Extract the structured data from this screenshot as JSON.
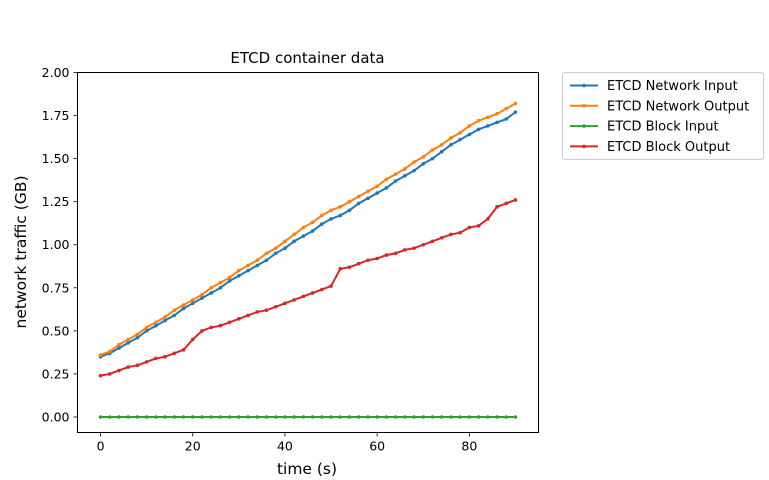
{
  "chart_data": {
    "type": "line",
    "title": "ETCD container data",
    "xlabel": "time (s)",
    "ylabel": "network traffic (GB)",
    "xlim": [
      -5,
      95
    ],
    "ylim": [
      -0.09,
      2.0
    ],
    "xticks": [
      0,
      20,
      40,
      60,
      80
    ],
    "yticks": [
      0.0,
      0.25,
      0.5,
      0.75,
      1.0,
      1.25,
      1.5,
      1.75,
      2.0
    ],
    "xtick_labels": [
      "0",
      "20",
      "40",
      "60",
      "80"
    ],
    "ytick_labels": [
      "0.00",
      "0.25",
      "0.50",
      "0.75",
      "1.00",
      "1.25",
      "1.50",
      "1.75",
      "2.00"
    ],
    "legend_position": "outside upper right",
    "grid": false,
    "x": [
      0,
      2,
      4,
      6,
      8,
      10,
      12,
      14,
      16,
      18,
      20,
      22,
      24,
      26,
      28,
      30,
      32,
      34,
      36,
      38,
      40,
      42,
      44,
      46,
      48,
      50,
      52,
      54,
      56,
      58,
      60,
      62,
      64,
      66,
      68,
      70,
      72,
      74,
      76,
      78,
      80,
      82,
      84,
      86,
      88,
      90
    ],
    "series": [
      {
        "name": "ETCD Network Input",
        "color": "#1f77b4",
        "values": [
          0.35,
          0.37,
          0.4,
          0.43,
          0.46,
          0.5,
          0.53,
          0.56,
          0.59,
          0.63,
          0.66,
          0.69,
          0.72,
          0.75,
          0.79,
          0.82,
          0.85,
          0.88,
          0.91,
          0.95,
          0.98,
          1.02,
          1.05,
          1.08,
          1.12,
          1.15,
          1.17,
          1.2,
          1.24,
          1.27,
          1.3,
          1.33,
          1.37,
          1.4,
          1.43,
          1.47,
          1.5,
          1.54,
          1.58,
          1.61,
          1.64,
          1.67,
          1.69,
          1.71,
          1.73,
          1.77
        ]
      },
      {
        "name": "ETCD Network Output",
        "color": "#ff7f0e",
        "values": [
          0.36,
          0.38,
          0.42,
          0.45,
          0.48,
          0.52,
          0.55,
          0.58,
          0.62,
          0.65,
          0.68,
          0.71,
          0.75,
          0.78,
          0.81,
          0.85,
          0.88,
          0.91,
          0.95,
          0.98,
          1.02,
          1.06,
          1.1,
          1.13,
          1.17,
          1.2,
          1.22,
          1.25,
          1.28,
          1.31,
          1.34,
          1.38,
          1.41,
          1.44,
          1.48,
          1.51,
          1.55,
          1.58,
          1.62,
          1.65,
          1.69,
          1.72,
          1.74,
          1.76,
          1.79,
          1.82
        ]
      },
      {
        "name": "ETCD Block Input",
        "color": "#2ca02c",
        "values": [
          0.0,
          0.0,
          0.0,
          0.0,
          0.0,
          0.0,
          0.0,
          0.0,
          0.0,
          0.0,
          0.0,
          0.0,
          0.0,
          0.0,
          0.0,
          0.0,
          0.0,
          0.0,
          0.0,
          0.0,
          0.0,
          0.0,
          0.0,
          0.0,
          0.0,
          0.0,
          0.0,
          0.0,
          0.0,
          0.0,
          0.0,
          0.0,
          0.0,
          0.0,
          0.0,
          0.0,
          0.0,
          0.0,
          0.0,
          0.0,
          0.0,
          0.0,
          0.0,
          0.0,
          0.0,
          0.0
        ]
      },
      {
        "name": "ETCD Block Output",
        "color": "#d62728",
        "values": [
          0.24,
          0.25,
          0.27,
          0.29,
          0.3,
          0.32,
          0.34,
          0.35,
          0.37,
          0.39,
          0.45,
          0.5,
          0.52,
          0.53,
          0.55,
          0.57,
          0.59,
          0.61,
          0.62,
          0.64,
          0.66,
          0.68,
          0.7,
          0.72,
          0.74,
          0.76,
          0.86,
          0.87,
          0.89,
          0.91,
          0.92,
          0.94,
          0.95,
          0.97,
          0.98,
          1.0,
          1.02,
          1.04,
          1.06,
          1.07,
          1.1,
          1.11,
          1.15,
          1.22,
          1.24,
          1.26
        ]
      }
    ]
  }
}
